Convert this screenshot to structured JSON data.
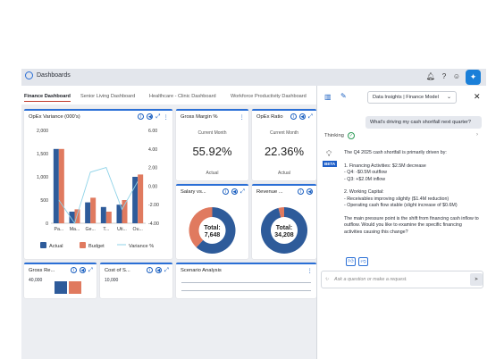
{
  "app": {
    "title": "Dashboards"
  },
  "header_icons": [
    "bell-icon",
    "help-icon",
    "user-icon",
    "ai-assistant-icon"
  ],
  "tabs": [
    {
      "label": "Finance Dashboard",
      "active": true
    },
    {
      "label": "Senior Living Dashboard",
      "active": false
    },
    {
      "label": "Healthcare - Clinic Dashboard",
      "active": false
    },
    {
      "label": "Workforce Productivity Dashboard",
      "active": false
    }
  ],
  "cards": {
    "opex_variance": {
      "title": "OpEx Variance (000's)"
    },
    "gross_margin": {
      "title": "Gross Margin %",
      "sub": "Current Month",
      "value": "55.92%",
      "foot": "Actual"
    },
    "opex_ratio": {
      "title": "OpEx Ratio",
      "sub": "Current Month",
      "value": "22.36%",
      "foot": "Actual"
    },
    "salary": {
      "title": "Salary vs...",
      "center_label": "Total:",
      "center_value": "7,648"
    },
    "revenue": {
      "title": "Revenue ...",
      "center_label": "Total:",
      "center_value": "34,208"
    },
    "gross_rev": {
      "title": "Gross Re...",
      "tick": "40,000"
    },
    "cost_of": {
      "title": "Cost of S...",
      "tick": "10,000"
    },
    "scenario": {
      "title": "Scenario Analysis"
    }
  },
  "chart_data": [
    {
      "type": "bar",
      "title": "OpEx Variance (000's)",
      "categories": [
        "Pa...",
        "Ma...",
        "Ge...",
        "T...",
        "Uti...",
        "Ou..."
      ],
      "series": [
        {
          "name": "Actual",
          "values": [
            1600,
            250,
            450,
            350,
            400,
            1000
          ],
          "color": "#2e5b9a"
        },
        {
          "name": "Budget",
          "values": [
            1600,
            300,
            550,
            250,
            500,
            1050
          ],
          "color": "#e07a5f"
        },
        {
          "name": "Variance %",
          "type": "line",
          "axis": "right",
          "values": [
            -1.5,
            -4.0,
            1.5,
            2.0,
            -2.5,
            0.5
          ],
          "color": "#8fd3e8"
        }
      ],
      "ylim": [
        0,
        2000
      ],
      "yticks": [
        "2,000",
        "1,500",
        "1,000",
        "500",
        "0"
      ],
      "y2lim": [
        -4.0,
        6.0
      ],
      "y2ticks": [
        "6.00",
        "4.00",
        "2.00",
        "0.00",
        "-2.00",
        "-4.00"
      ],
      "legend": "bottom"
    },
    {
      "type": "pie",
      "title": "Salary vs...",
      "slices": [
        {
          "value": 62,
          "color": "#2e5b9a"
        },
        {
          "value": 38,
          "color": "#e07a5f"
        }
      ],
      "total_label": "Total:",
      "total": "7,648"
    },
    {
      "type": "pie",
      "title": "Revenue ...",
      "slices": [
        {
          "value": 96,
          "color": "#2e5b9a"
        },
        {
          "value": 4,
          "color": "#e07a5f"
        }
      ],
      "total_label": "Total:",
      "total": "34,208"
    }
  ],
  "chat": {
    "model": "Data Insights | Finance Model",
    "user_message": "What's driving my cash shortfall next quarter?",
    "thinking_label": "Thinking",
    "beta_label": "BETA",
    "reply": [
      "The Q4 2025 cash shortfall is primarily driven by:",
      "1. Financing Activities: $2.5M decrease",
      "- Q4: -$0.5M outflow",
      "- Q3: +$2.0M inflow",
      "2. Working Capital:",
      "- Receivables improving slightly ($1.4M reduction)",
      "- Operating cash flow stable (slight increase of $0.6M)",
      "The main pressure point is the shift from financing cash inflow to outflow. Would you like to examine the specific financing activities causing this change?"
    ],
    "input_placeholder": "Ask a question or make a request."
  }
}
